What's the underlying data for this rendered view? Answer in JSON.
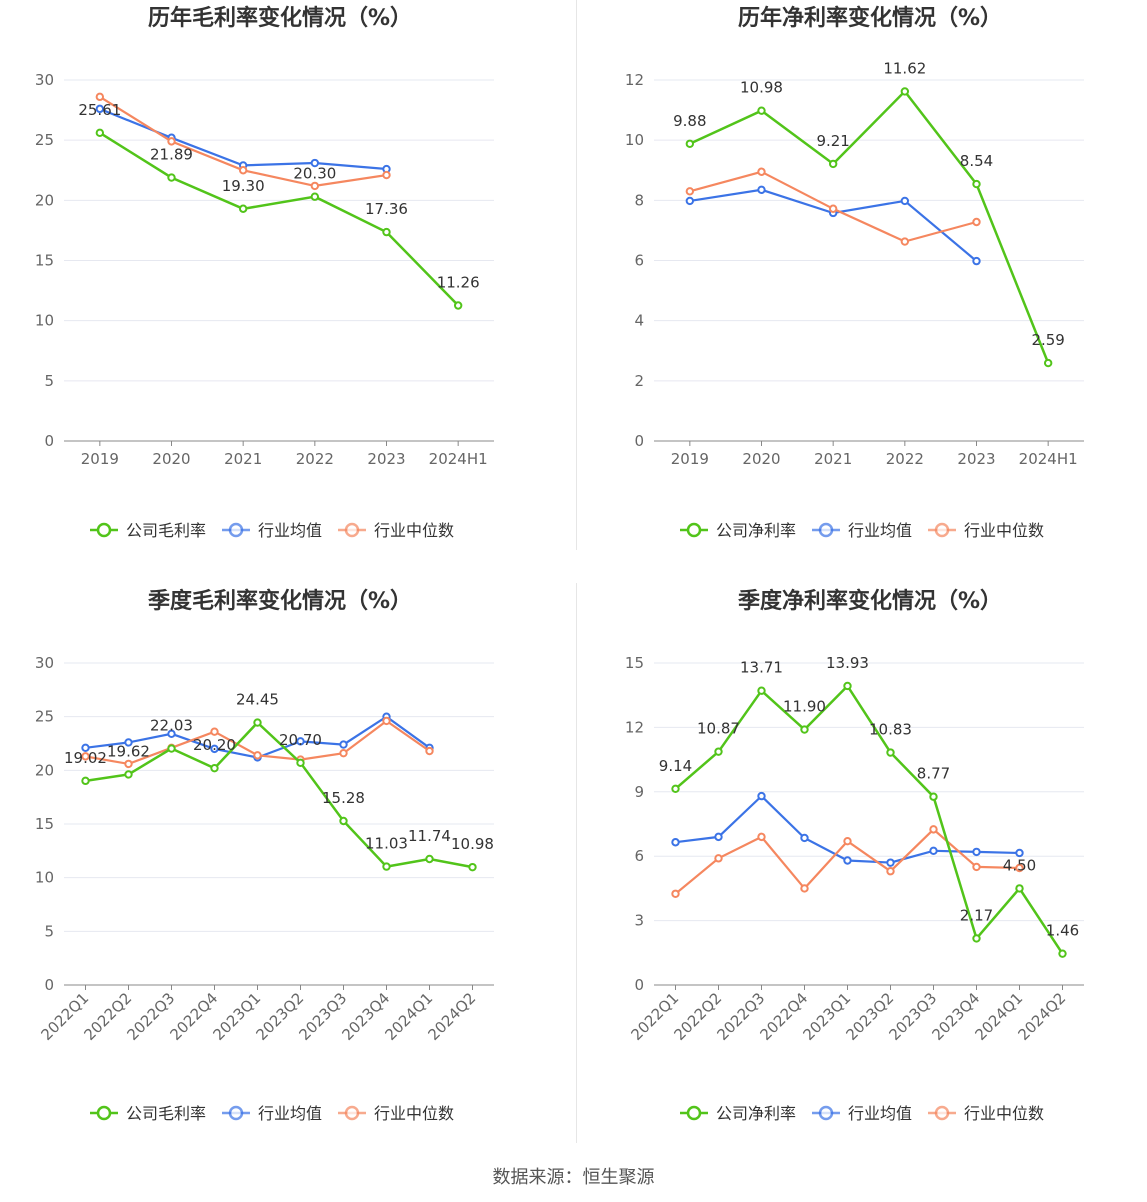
{
  "colors": {
    "company": "#52c41a",
    "avg": "#3b73e6",
    "median": "#f5875f",
    "grid": "#e6e8f0",
    "axis": "#888888"
  },
  "source_text": "数据来源：恒生聚源",
  "chart_data": [
    {
      "type": "line",
      "title": "历年毛利率变化情况（%）",
      "categories": [
        "2019",
        "2020",
        "2021",
        "2022",
        "2023",
        "2024H1"
      ],
      "ylim": [
        0,
        30
      ],
      "yticks": [
        0,
        5,
        10,
        15,
        20,
        25,
        30
      ],
      "grid": true,
      "legend": "bottom",
      "series": [
        {
          "name": "公司毛利率",
          "color": "#52c41a",
          "values": [
            25.61,
            21.89,
            19.3,
            20.3,
            17.36,
            11.26
          ],
          "labels": [
            "25.61",
            "21.89",
            "19.30",
            "20.30",
            "17.36",
            "11.26"
          ]
        },
        {
          "name": "行业均值",
          "color": "#3b73e6",
          "values": [
            27.6,
            25.2,
            22.9,
            23.1,
            22.6,
            null
          ]
        },
        {
          "name": "行业中位数",
          "color": "#f5875f",
          "values": [
            28.6,
            24.9,
            22.5,
            21.2,
            22.1,
            null
          ]
        }
      ]
    },
    {
      "type": "line",
      "title": "历年净利率变化情况（%）",
      "categories": [
        "2019",
        "2020",
        "2021",
        "2022",
        "2023",
        "2024H1"
      ],
      "ylim": [
        0,
        12
      ],
      "yticks": [
        0,
        2,
        4,
        6,
        8,
        10,
        12
      ],
      "grid": true,
      "legend": "bottom",
      "series": [
        {
          "name": "公司净利率",
          "color": "#52c41a",
          "values": [
            9.88,
            10.98,
            9.21,
            11.62,
            8.54,
            2.59
          ],
          "labels": [
            "9.88",
            "10.98",
            "9.21",
            "11.62",
            "8.54",
            "2.59"
          ]
        },
        {
          "name": "行业均值",
          "color": "#3b73e6",
          "values": [
            7.98,
            8.35,
            7.58,
            7.98,
            5.98,
            null
          ]
        },
        {
          "name": "行业中位数",
          "color": "#f5875f",
          "values": [
            8.3,
            8.95,
            7.72,
            6.63,
            7.28,
            null
          ]
        }
      ]
    },
    {
      "type": "line",
      "title": "季度毛利率变化情况（%）",
      "categories": [
        "2022Q1",
        "2022Q2",
        "2022Q3",
        "2022Q4",
        "2023Q1",
        "2023Q2",
        "2023Q3",
        "2023Q4",
        "2024Q1",
        "2024Q2"
      ],
      "ylim": [
        0,
        30
      ],
      "yticks": [
        0,
        5,
        10,
        15,
        20,
        25,
        30
      ],
      "grid": true,
      "legend": "bottom",
      "rotate_x": true,
      "series": [
        {
          "name": "公司毛利率",
          "color": "#52c41a",
          "values": [
            19.02,
            19.62,
            22.03,
            20.2,
            24.45,
            20.7,
            15.28,
            11.03,
            11.74,
            10.98
          ],
          "labels": [
            "19.02",
            "19.62",
            "22.03",
            "20.20",
            "24.45",
            "20.70",
            "15.28",
            "11.03",
            "11.74",
            "10.98"
          ]
        },
        {
          "name": "行业均值",
          "color": "#3b73e6",
          "values": [
            22.1,
            22.6,
            23.4,
            22.0,
            21.2,
            22.7,
            22.4,
            25.0,
            22.1,
            null
          ]
        },
        {
          "name": "行业中位数",
          "color": "#f5875f",
          "values": [
            21.3,
            20.6,
            22.1,
            23.6,
            21.4,
            21.0,
            21.6,
            24.6,
            21.8,
            null
          ]
        }
      ]
    },
    {
      "type": "line",
      "title": "季度净利率变化情况（%）",
      "categories": [
        "2022Q1",
        "2022Q2",
        "2022Q3",
        "2022Q4",
        "2023Q1",
        "2023Q2",
        "2023Q3",
        "2023Q4",
        "2024Q1",
        "2024Q2"
      ],
      "ylim": [
        0,
        15
      ],
      "yticks": [
        0,
        3,
        6,
        9,
        12,
        15
      ],
      "grid": true,
      "legend": "bottom",
      "rotate_x": true,
      "series": [
        {
          "name": "公司净利率",
          "color": "#52c41a",
          "values": [
            9.14,
            10.87,
            13.71,
            11.9,
            13.93,
            10.83,
            8.77,
            2.17,
            4.5,
            1.46
          ],
          "labels": [
            "9.14",
            "10.87",
            "13.71",
            "11.90",
            "13.93",
            "10.83",
            "8.77",
            "2.17",
            "4.50",
            "1.46"
          ]
        },
        {
          "name": "行业均值",
          "color": "#3b73e6",
          "values": [
            6.65,
            6.9,
            8.8,
            6.85,
            5.8,
            5.7,
            6.25,
            6.2,
            6.15,
            null
          ]
        },
        {
          "name": "行业中位数",
          "color": "#f5875f",
          "values": [
            4.25,
            5.9,
            6.9,
            4.5,
            6.7,
            5.3,
            7.25,
            5.5,
            5.45,
            null
          ]
        }
      ]
    }
  ]
}
